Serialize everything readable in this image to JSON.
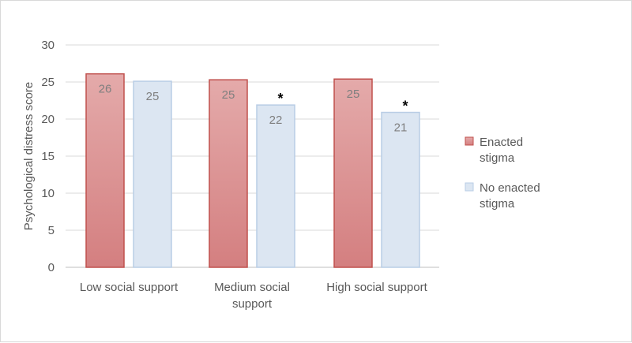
{
  "chart_data": {
    "type": "bar",
    "ylabel": "Psychological distress score",
    "ylim": [
      0,
      30
    ],
    "yticks": [
      0,
      5,
      10,
      15,
      20,
      25,
      30
    ],
    "grid": true,
    "legend_position": "right",
    "categories": [
      [
        "Low social support"
      ],
      [
        "Medium social",
        "support"
      ],
      [
        "High social support"
      ]
    ],
    "series": [
      {
        "name_lines": [
          "Enacted",
          "stigma"
        ],
        "values": [
          26.1,
          25.3,
          25.4
        ],
        "labels": [
          "26",
          "25",
          "25"
        ],
        "fill_top": "#e4aaaa",
        "fill_bottom": "#d47f80",
        "stroke": "#c0504d"
      },
      {
        "name_lines": [
          "No enacted",
          "stigma"
        ],
        "values": [
          25.1,
          21.9,
          20.9
        ],
        "labels": [
          "25",
          "22",
          "21"
        ],
        "fill_top": "#dce6f2",
        "fill_bottom": "#dce6f2",
        "stroke": "#b9cde5"
      }
    ],
    "annotations": [
      {
        "category_index": 1,
        "text": "*"
      },
      {
        "category_index": 2,
        "text": "*"
      }
    ]
  }
}
